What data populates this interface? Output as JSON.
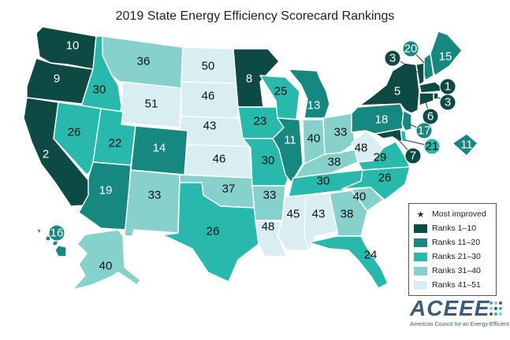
{
  "title": "2019 State Energy Efficiency Scorecard Rankings",
  "colors": {
    "rank_1_10": "#0d4a44",
    "rank_11_20": "#16887f",
    "rank_21_30": "#29b8ac",
    "rank_31_40": "#86d1cc",
    "rank_41_51": "#d8eef2"
  },
  "legend": {
    "most_improved": "Most improved",
    "bins": [
      {
        "label": "Ranks 1–10",
        "color": "#0d4a44"
      },
      {
        "label": "Ranks 11–20",
        "color": "#16887f"
      },
      {
        "label": "Ranks 21–30",
        "color": "#29b8ac"
      },
      {
        "label": "Ranks 31–40",
        "color": "#86d1cc"
      },
      {
        "label": "Ranks 41–51",
        "color": "#d8eef2"
      }
    ]
  },
  "states": [
    {
      "id": "WA",
      "rank": "10"
    },
    {
      "id": "OR",
      "rank": "9"
    },
    {
      "id": "CA",
      "rank": "2"
    },
    {
      "id": "ID",
      "rank": "30"
    },
    {
      "id": "NV",
      "rank": "26"
    },
    {
      "id": "MT",
      "rank": "36"
    },
    {
      "id": "WY",
      "rank": "51"
    },
    {
      "id": "UT",
      "rank": "22"
    },
    {
      "id": "CO",
      "rank": "14"
    },
    {
      "id": "AZ",
      "rank": "19"
    },
    {
      "id": "NM",
      "rank": "33"
    },
    {
      "id": "ND",
      "rank": "50"
    },
    {
      "id": "SD",
      "rank": "46"
    },
    {
      "id": "NE",
      "rank": "43"
    },
    {
      "id": "KS",
      "rank": "46"
    },
    {
      "id": "OK",
      "rank": "37"
    },
    {
      "id": "TX",
      "rank": "26"
    },
    {
      "id": "MN",
      "rank": "8"
    },
    {
      "id": "IA",
      "rank": "23"
    },
    {
      "id": "MO",
      "rank": "30"
    },
    {
      "id": "AR",
      "rank": "33"
    },
    {
      "id": "LA",
      "rank": "48"
    },
    {
      "id": "WI",
      "rank": "25"
    },
    {
      "id": "IL",
      "rank": "11"
    },
    {
      "id": "MI",
      "rank": "13"
    },
    {
      "id": "IN",
      "rank": "40"
    },
    {
      "id": "OH",
      "rank": "33"
    },
    {
      "id": "KY",
      "rank": "38"
    },
    {
      "id": "TN",
      "rank": "30"
    },
    {
      "id": "MS",
      "rank": "45"
    },
    {
      "id": "AL",
      "rank": "43"
    },
    {
      "id": "GA",
      "rank": "38"
    },
    {
      "id": "FL",
      "rank": "24"
    },
    {
      "id": "SC",
      "rank": "40"
    },
    {
      "id": "NC",
      "rank": "26"
    },
    {
      "id": "VA",
      "rank": "29"
    },
    {
      "id": "WV",
      "rank": "48"
    },
    {
      "id": "PA",
      "rank": "18"
    },
    {
      "id": "NY",
      "rank": "5"
    },
    {
      "id": "ME",
      "rank": "15"
    },
    {
      "id": "AK",
      "rank": "40"
    }
  ],
  "callouts": [
    {
      "id": "VT",
      "rank": "3"
    },
    {
      "id": "NH",
      "rank": "20"
    },
    {
      "id": "MA",
      "rank": "1"
    },
    {
      "id": "RI",
      "rank": "3"
    },
    {
      "id": "CT",
      "rank": "6"
    },
    {
      "id": "NJ",
      "rank": "17"
    },
    {
      "id": "DE",
      "rank": "21"
    },
    {
      "id": "MD",
      "rank": "7"
    },
    {
      "id": "HI",
      "rank": "16"
    },
    {
      "id": "DC",
      "rank": "11"
    }
  ],
  "logo": {
    "name": "ACEEE",
    "tagline": "American Council for an Energy-Efficient Economy"
  }
}
